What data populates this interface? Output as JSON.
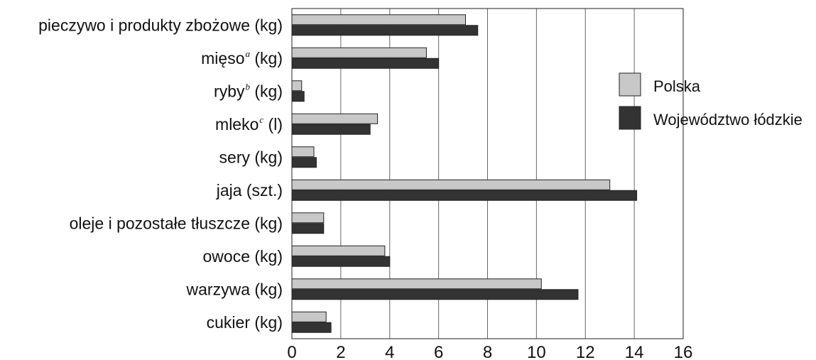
{
  "chart_data": {
    "type": "bar",
    "orientation": "horizontal",
    "categories": [
      {
        "label": "pieczywo i produkty zbożowe (kg)",
        "parts": [
          {
            "text": "pieczywo i produkty zbożowe (kg)"
          }
        ]
      },
      {
        "label": "mięso (kg)",
        "parts": [
          {
            "text": "mięso"
          },
          {
            "text": "a",
            "sup": true
          },
          {
            "text": " (kg)"
          }
        ]
      },
      {
        "label": "ryby (kg)",
        "parts": [
          {
            "text": "ryby"
          },
          {
            "text": "b",
            "sup": true
          },
          {
            "text": " (kg)"
          }
        ]
      },
      {
        "label": "mleko (l)",
        "parts": [
          {
            "text": "mleko"
          },
          {
            "text": "c",
            "sup": true
          },
          {
            "text": " (l)"
          }
        ]
      },
      {
        "label": "sery (kg)",
        "parts": [
          {
            "text": "sery (kg)"
          }
        ]
      },
      {
        "label": "jaja (szt.)",
        "parts": [
          {
            "text": "jaja (szt.)"
          }
        ]
      },
      {
        "label": "oleje i pozostałe tłuszcze (kg)",
        "parts": [
          {
            "text": "oleje i pozostałe tłuszcze (kg)"
          }
        ]
      },
      {
        "label": "owoce (kg)",
        "parts": [
          {
            "text": "owoce (kg)"
          }
        ]
      },
      {
        "label": "warzywa (kg)",
        "parts": [
          {
            "text": "warzywa (kg)"
          }
        ]
      },
      {
        "label": "cukier (kg)",
        "parts": [
          {
            "text": "cukier (kg)"
          }
        ]
      }
    ],
    "series": [
      {
        "name": "Polska",
        "color": "#c8c8c8",
        "values": [
          7.1,
          5.5,
          0.4,
          3.5,
          0.9,
          13.0,
          1.3,
          3.8,
          10.2,
          1.4
        ]
      },
      {
        "name": "Województwo łódzkie",
        "color": "#333333",
        "values": [
          7.6,
          6.0,
          0.5,
          3.2,
          1.0,
          14.1,
          1.3,
          4.0,
          11.7,
          1.6
        ]
      }
    ],
    "xlim": [
      0,
      16
    ],
    "xticks": [
      0,
      2,
      4,
      6,
      8,
      10,
      12,
      14,
      16
    ],
    "grid": "vertical",
    "legend": "right"
  }
}
